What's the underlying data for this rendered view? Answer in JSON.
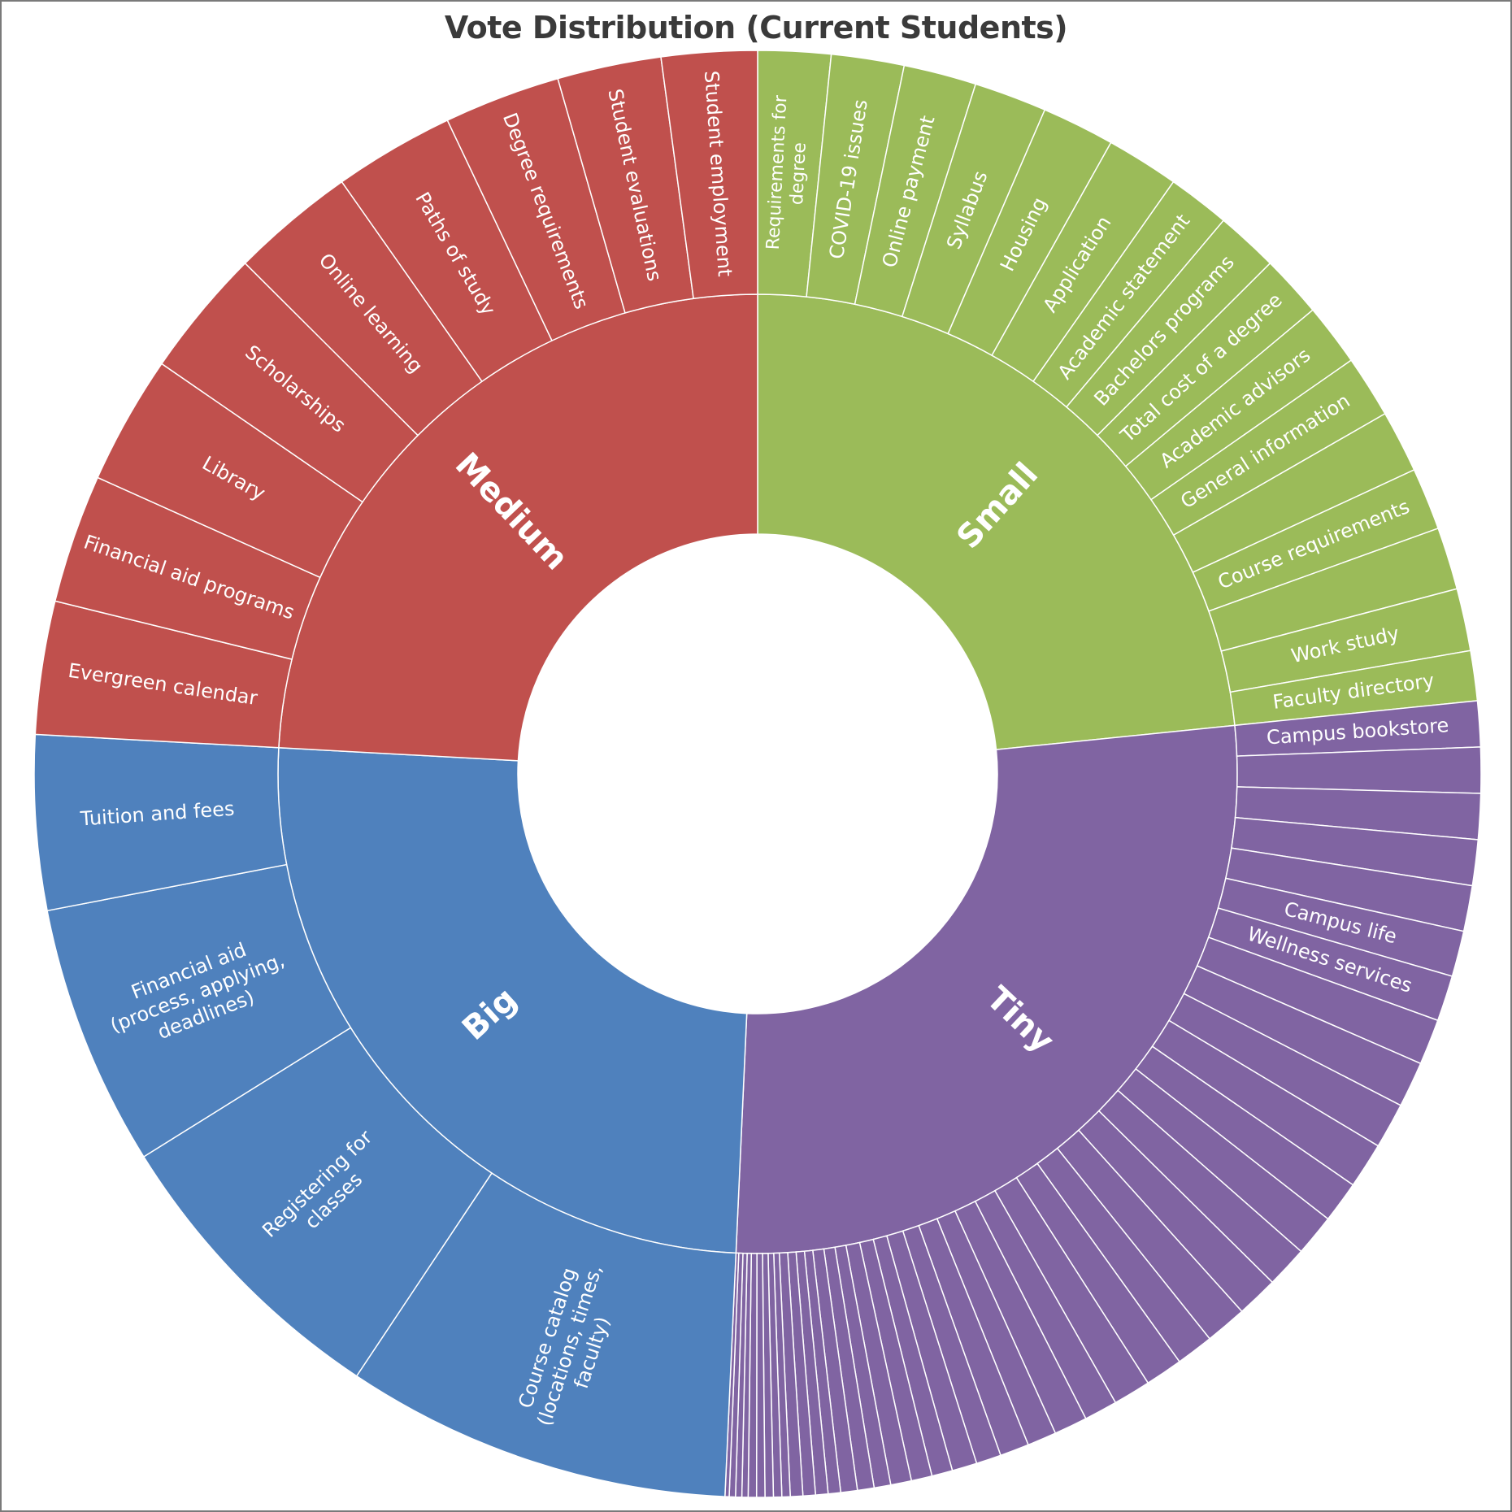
{
  "chart_data": {
    "type": "sunburst",
    "title": "Vote Distribution (Current Students)",
    "start_angle_deg": 0,
    "direction": "clockwise",
    "groups": [
      {
        "name": "Small",
        "color": "#9bbb59",
        "items": [
          {
            "label": "Requirements for degree",
            "value": 1.75
          },
          {
            "label": "COVID-19 issues",
            "value": 1.75
          },
          {
            "label": "Online payment",
            "value": 1.75
          },
          {
            "label": "Syllabus",
            "value": 1.75
          },
          {
            "label": "Housing",
            "value": 1.75
          },
          {
            "label": "Application",
            "value": 1.75
          },
          {
            "label": "Academic statement",
            "value": 1.5
          },
          {
            "label": "Bachelors  programs",
            "value": 1.5
          },
          {
            "label": "Total cost of a degree",
            "value": 1.5
          },
          {
            "label": "Academic advisors",
            "value": 1.5
          },
          {
            "label": "General information",
            "value": 1.5
          },
          {
            "label": "",
            "value": 1.5
          },
          {
            "label": "Course requirements",
            "value": 1.5
          },
          {
            "label": "",
            "value": 1.5
          },
          {
            "label": "Work study",
            "value": 1.5
          },
          {
            "label": "Faculty directory",
            "value": 1.2
          }
        ]
      },
      {
        "name": "Tiny",
        "color": "#8064a2",
        "items": [
          {
            "label": "Campus bookstore",
            "value": 1.1
          },
          {
            "label": "",
            "value": 1.1
          },
          {
            "label": "",
            "value": 1.1
          },
          {
            "label": "",
            "value": 1.1
          },
          {
            "label": "",
            "value": 1.1
          },
          {
            "label": "Campus life",
            "value": 1.1
          },
          {
            "label": "Wellness services",
            "value": 1.1
          },
          {
            "label": "",
            "value": 1.1
          },
          {
            "label": "",
            "value": 1.1
          },
          {
            "label": "",
            "value": 1.1
          },
          {
            "label": "",
            "value": 1.1
          },
          {
            "label": "",
            "value": 1.0
          },
          {
            "label": "",
            "value": 1.0
          },
          {
            "label": "",
            "value": 1.0
          },
          {
            "label": "",
            "value": 1.0
          },
          {
            "label": "",
            "value": 1.0
          },
          {
            "label": "",
            "value": 0.9
          },
          {
            "label": "",
            "value": 0.9
          },
          {
            "label": "",
            "value": 0.9
          },
          {
            "label": "",
            "value": 0.8
          },
          {
            "label": "",
            "value": 0.8
          },
          {
            "label": "",
            "value": 0.7
          },
          {
            "label": "",
            "value": 0.7
          },
          {
            "label": "",
            "value": 0.6
          },
          {
            "label": "",
            "value": 0.6
          },
          {
            "label": "",
            "value": 0.5
          },
          {
            "label": "",
            "value": 0.5
          },
          {
            "label": "",
            "value": 0.5
          },
          {
            "label": "",
            "value": 0.4
          },
          {
            "label": "",
            "value": 0.4
          },
          {
            "label": "",
            "value": 0.4
          },
          {
            "label": "",
            "value": 0.3
          },
          {
            "label": "",
            "value": 0.3
          },
          {
            "label": "",
            "value": 0.3
          },
          {
            "label": "",
            "value": 0.3
          },
          {
            "label": "",
            "value": 0.2
          },
          {
            "label": "",
            "value": 0.2
          },
          {
            "label": "",
            "value": 0.2
          },
          {
            "label": "",
            "value": 0.2
          },
          {
            "label": "",
            "value": 0.2
          },
          {
            "label": "",
            "value": 0.15
          },
          {
            "label": "",
            "value": 0.15
          },
          {
            "label": "",
            "value": 0.15
          },
          {
            "label": "",
            "value": 0.1
          }
        ]
      },
      {
        "name": "Big",
        "color": "#4f81bd",
        "items": [
          {
            "label": "Course catalog (locations, times, faculty)",
            "value": 9.3
          },
          {
            "label": "Registering for classes",
            "value": 7.3
          },
          {
            "label": "Financial aid (process, applying, deadlines)",
            "value": 6.3
          },
          {
            "label": "Tuition and fees",
            "value": 4.2
          }
        ]
      },
      {
        "name": "Medium",
        "color": "#c0504d",
        "items": [
          {
            "label": "Evergreen calendar",
            "value": 3.2
          },
          {
            "label": "Financial aid programs",
            "value": 3.1
          },
          {
            "label": "Library",
            "value": 3.1
          },
          {
            "label": "Scholarships",
            "value": 3.1
          },
          {
            "label": "Online learning",
            "value": 3.0
          },
          {
            "label": "Paths of study",
            "value": 2.9
          },
          {
            "label": "Degree requirements",
            "value": 2.8
          },
          {
            "label": "Student evaluations",
            "value": 2.5
          },
          {
            "label": "Student employment",
            "value": 2.3
          }
        ]
      }
    ]
  }
}
